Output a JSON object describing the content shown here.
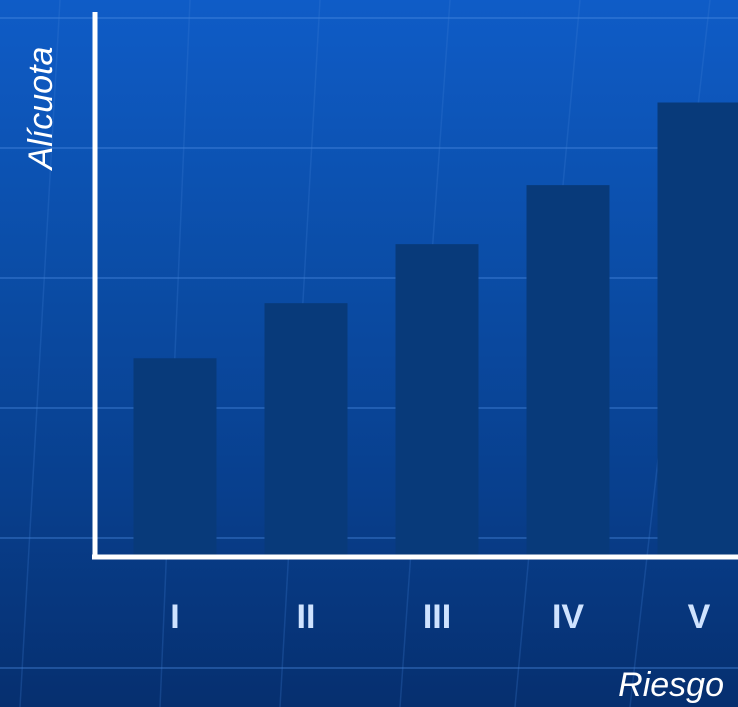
{
  "chart_data": {
    "type": "bar",
    "title": "",
    "xlabel": "Riesgo",
    "ylabel": "Alícuota",
    "categories": [
      "I",
      "II",
      "III",
      "IV",
      "V"
    ],
    "values": [
      1.0,
      1.28,
      1.58,
      1.88,
      2.3
    ],
    "ylim": [
      0,
      2.76
    ],
    "grid": false,
    "legend": "none",
    "bar_color": "#083a7a",
    "axis_color": "#ffffff"
  }
}
